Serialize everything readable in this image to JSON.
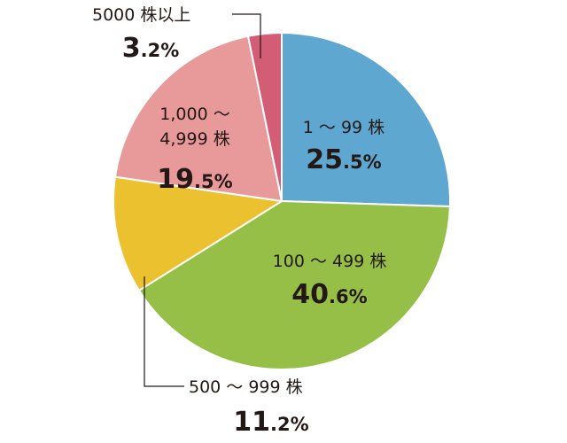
{
  "chart_data": {
    "type": "pie",
    "start": "12 o'clock",
    "direction": "clockwise",
    "slices": [
      {
        "label": "1 ～ 99 株",
        "int": "25",
        "dec": ".5%",
        "value": 25.5,
        "color": "#5ea7d0"
      },
      {
        "label": "100 ～ 499 株",
        "int": "40",
        "dec": ".6%",
        "value": 40.6,
        "color": "#96bf47"
      },
      {
        "label": "500 ～ 999 株",
        "int": "11",
        "dec": ".2%",
        "value": 11.2,
        "color": "#ebc130"
      },
      {
        "label1": "1,000 ～",
        "label2": "4,999 株",
        "int": "19",
        "dec": ".5%",
        "value": 19.5,
        "color": "#e8999a"
      },
      {
        "label": "5000 株以上",
        "int": "3",
        "dec": ".2%",
        "value": 3.2,
        "color": "#d45d76"
      }
    ]
  }
}
